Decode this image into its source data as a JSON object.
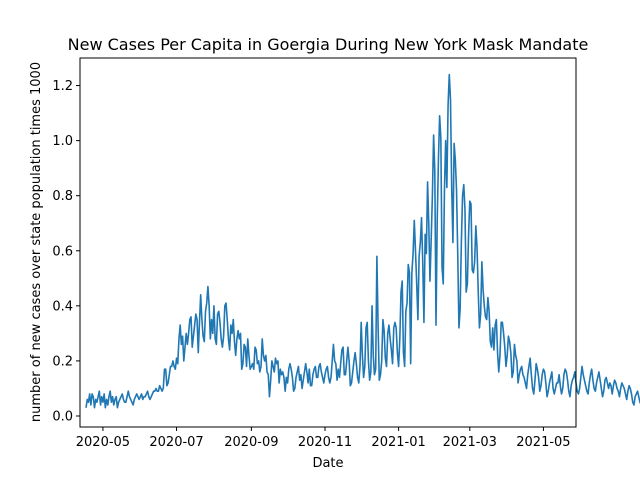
{
  "chart_data": {
    "type": "line",
    "title": "New Cases Per Capita in Goergia During New York Mask Mandate",
    "xlabel": "Date",
    "ylabel": "number of new cases over state population times 1000",
    "xlim": [
      "2020-04-12",
      "2021-05-28"
    ],
    "ylim": [
      -0.04,
      1.3
    ],
    "xticks": [
      "2020-05",
      "2020-07",
      "2020-09",
      "2020-11",
      "2021-01",
      "2021-03",
      "2021-05"
    ],
    "yticks": [
      "0.0",
      "0.2",
      "0.4",
      "0.6",
      "0.8",
      "1.0",
      "1.2"
    ],
    "grid": false,
    "series": [
      {
        "color": "#1f77b4",
        "start_date": "2020-04-17",
        "step_days": 1,
        "values": [
          0.03,
          0.06,
          0.05,
          0.08,
          0.04,
          0.08,
          0.07,
          0.03,
          0.06,
          0.05,
          0.07,
          0.09,
          0.04,
          0.07,
          0.05,
          0.08,
          0.03,
          0.06,
          0.04,
          0.07,
          0.09,
          0.05,
          0.07,
          0.04,
          0.06,
          0.07,
          0.03,
          0.05,
          0.06,
          0.07,
          0.08,
          0.06,
          0.05,
          0.05,
          0.07,
          0.09,
          0.07,
          0.06,
          0.05,
          0.04,
          0.06,
          0.07,
          0.08,
          0.07,
          0.06,
          0.07,
          0.08,
          0.06,
          0.07,
          0.07,
          0.08,
          0.09,
          0.07,
          0.06,
          0.07,
          0.08,
          0.09,
          0.09,
          0.1,
          0.09,
          0.09,
          0.11,
          0.1,
          0.09,
          0.1,
          0.17,
          0.17,
          0.11,
          0.12,
          0.15,
          0.18,
          0.18,
          0.2,
          0.18,
          0.17,
          0.21,
          0.19,
          0.28,
          0.33,
          0.26,
          0.29,
          0.2,
          0.25,
          0.3,
          0.26,
          0.3,
          0.35,
          0.36,
          0.25,
          0.29,
          0.33,
          0.37,
          0.35,
          0.23,
          0.34,
          0.44,
          0.35,
          0.29,
          0.27,
          0.38,
          0.41,
          0.47,
          0.4,
          0.28,
          0.35,
          0.3,
          0.4,
          0.28,
          0.26,
          0.37,
          0.38,
          0.34,
          0.28,
          0.25,
          0.29,
          0.4,
          0.41,
          0.35,
          0.28,
          0.24,
          0.33,
          0.3,
          0.35,
          0.27,
          0.22,
          0.28,
          0.31,
          0.28,
          0.3,
          0.17,
          0.19,
          0.26,
          0.25,
          0.18,
          0.28,
          0.22,
          0.17,
          0.18,
          0.19,
          0.17,
          0.25,
          0.24,
          0.19,
          0.2,
          0.16,
          0.18,
          0.28,
          0.22,
          0.2,
          0.22,
          0.16,
          0.15,
          0.07,
          0.13,
          0.2,
          0.18,
          0.16,
          0.21,
          0.19,
          0.2,
          0.12,
          0.17,
          0.15,
          0.16,
          0.14,
          0.09,
          0.14,
          0.12,
          0.17,
          0.19,
          0.17,
          0.14,
          0.09,
          0.1,
          0.14,
          0.16,
          0.18,
          0.13,
          0.15,
          0.1,
          0.13,
          0.16,
          0.19,
          0.16,
          0.12,
          0.17,
          0.11,
          0.11,
          0.15,
          0.17,
          0.18,
          0.14,
          0.14,
          0.18,
          0.19,
          0.16,
          0.14,
          0.12,
          0.15,
          0.17,
          0.18,
          0.14,
          0.12,
          0.14,
          0.2,
          0.26,
          0.2,
          0.19,
          0.13,
          0.17,
          0.14,
          0.19,
          0.24,
          0.25,
          0.15,
          0.15,
          0.2,
          0.25,
          0.2,
          0.11,
          0.12,
          0.16,
          0.2,
          0.23,
          0.19,
          0.14,
          0.12,
          0.18,
          0.34,
          0.22,
          0.14,
          0.18,
          0.32,
          0.34,
          0.2,
          0.13,
          0.16,
          0.4,
          0.22,
          0.15,
          0.17,
          0.58,
          0.33,
          0.13,
          0.15,
          0.2,
          0.35,
          0.31,
          0.21,
          0.18,
          0.3,
          0.33,
          0.28,
          0.24,
          0.19,
          0.32,
          0.34,
          0.32,
          0.23,
          0.18,
          0.28,
          0.45,
          0.49,
          0.23,
          0.18,
          0.38,
          0.41,
          0.55,
          0.52,
          0.19,
          0.52,
          0.59,
          0.71,
          0.6,
          0.48,
          0.35,
          0.58,
          0.63,
          0.72,
          0.56,
          0.34,
          0.66,
          0.59,
          0.85,
          0.7,
          0.49,
          0.64,
          0.8,
          1.02,
          0.89,
          0.33,
          0.71,
          0.93,
          1.09,
          1.01,
          0.54,
          0.48,
          0.82,
          1.0,
          0.83,
          1.13,
          1.24,
          1.15,
          0.83,
          0.63,
          0.99,
          0.93,
          0.82,
          0.59,
          0.32,
          0.39,
          0.63,
          0.8,
          0.84,
          0.75,
          0.45,
          0.48,
          0.66,
          0.78,
          0.77,
          0.53,
          0.52,
          0.56,
          0.69,
          0.61,
          0.45,
          0.32,
          0.37,
          0.56,
          0.46,
          0.4,
          0.36,
          0.35,
          0.43,
          0.38,
          0.27,
          0.25,
          0.32,
          0.24,
          0.33,
          0.35,
          0.23,
          0.16,
          0.22,
          0.34,
          0.34,
          0.3,
          0.25,
          0.18,
          0.22,
          0.29,
          0.27,
          0.23,
          0.14,
          0.16,
          0.26,
          0.22,
          0.2,
          0.12,
          0.15,
          0.17,
          0.18,
          0.15,
          0.14,
          0.12,
          0.1,
          0.15,
          0.18,
          0.21,
          0.15,
          0.1,
          0.08,
          0.13,
          0.19,
          0.17,
          0.14,
          0.09,
          0.11,
          0.15,
          0.17,
          0.16,
          0.12,
          0.07,
          0.09,
          0.12,
          0.14,
          0.16,
          0.1,
          0.08,
          0.1,
          0.12,
          0.12,
          0.15,
          0.11,
          0.08,
          0.1,
          0.15,
          0.17,
          0.16,
          0.13,
          0.09,
          0.07,
          0.11,
          0.13,
          0.14,
          0.16,
          0.12,
          0.09,
          0.08,
          0.1,
          0.14,
          0.18,
          0.15,
          0.13,
          0.11,
          0.09,
          0.08,
          0.12,
          0.15,
          0.17,
          0.13,
          0.1,
          0.09,
          0.12,
          0.14,
          0.16,
          0.13,
          0.1,
          0.07,
          0.09,
          0.13,
          0.14,
          0.12,
          0.1,
          0.12,
          0.11,
          0.08,
          0.11,
          0.13,
          0.12,
          0.1,
          0.09,
          0.07,
          0.1,
          0.12,
          0.11,
          0.1,
          0.08,
          0.06,
          0.09,
          0.11,
          0.1,
          0.08,
          0.05,
          0.04,
          0.07,
          0.08,
          0.09,
          0.07,
          0.05,
          0.04,
          0.06,
          0.07
        ]
      }
    ]
  }
}
